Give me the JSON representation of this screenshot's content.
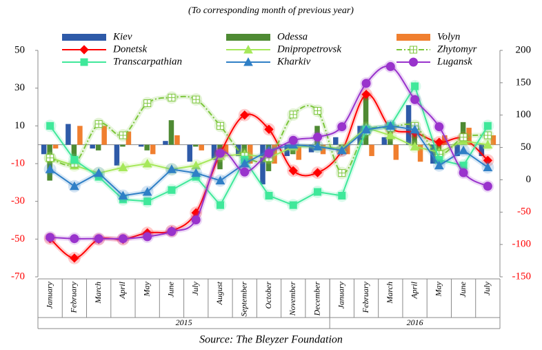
{
  "chart_data": {
    "type": "line",
    "subtitle": "(To corresponding month of previous year)",
    "source": "Source: The Bleyzer Foundation",
    "categories": [
      "January",
      "February",
      "March",
      "April",
      "May",
      "June",
      "July",
      "August",
      "September",
      "October",
      "November",
      "December",
      "January",
      "February",
      "March",
      "April",
      "May",
      "June",
      "July"
    ],
    "years": [
      "2015",
      "2016"
    ],
    "ylim": [
      -70,
      50
    ],
    "yticks": [
      -70,
      -50,
      -30,
      -10,
      10,
      30,
      50
    ],
    "y2lim": [
      -150,
      200
    ],
    "y2ticks": [
      -150,
      -100,
      -50,
      0,
      50,
      100,
      150,
      200
    ],
    "series": [
      {
        "name": "Kiev",
        "type": "bar",
        "color": "#2e5aa8",
        "values": [
          -5,
          11,
          -2,
          -11,
          -1,
          2,
          -9,
          -8,
          -6,
          -21,
          -6,
          -4,
          4,
          10,
          4,
          21,
          -10,
          -6,
          -6
        ]
      },
      {
        "name": "Odessa",
        "type": "bar",
        "color": "#4e8a33",
        "values": [
          -19,
          -7,
          -3,
          -1,
          -3,
          13,
          -1,
          -13,
          -10,
          -14,
          -5,
          10,
          -1,
          26,
          10,
          8,
          -3,
          12,
          -2
        ]
      },
      {
        "name": "Volyn",
        "type": "bar",
        "color": "#f07f2f",
        "values": [
          -2,
          10,
          10,
          7,
          -5,
          5,
          -3,
          -5,
          -10,
          -10,
          -8,
          -5,
          -5,
          -6,
          -8,
          -9,
          5,
          9,
          5
        ]
      },
      {
        "name": "Donetsk",
        "type": "line",
        "axis": "y2",
        "color": "#ff0000",
        "marker": "diamond",
        "smooth": true,
        "values": [
          -91,
          -121,
          -92,
          -92,
          -82,
          -79,
          -51,
          41,
          100,
          78,
          14,
          11,
          45,
          132,
          80,
          73,
          58,
          64,
          30
        ]
      },
      {
        "name": "Dnipropetrovsk",
        "type": "line",
        "color": "#a6e85a",
        "marker": "triangle",
        "values": [
          -7,
          -11,
          -15,
          -12,
          -10,
          -13,
          -11,
          -6,
          -5,
          -7,
          -1,
          -1,
          -2,
          9,
          5,
          -1,
          -4,
          2,
          0
        ]
      },
      {
        "name": "Zhytomyr",
        "type": "line",
        "color": "#7cc63b",
        "marker": "cross",
        "smooth": true,
        "dash": "8 3 2 3",
        "values": [
          -7,
          -10,
          11,
          5,
          22,
          25,
          24,
          10,
          -6,
          -7,
          16,
          18,
          -15,
          7,
          9,
          10,
          -5,
          4,
          5
        ]
      },
      {
        "name": "Transcarpathian",
        "type": "line",
        "color": "#3fe89a",
        "marker": "square",
        "values": [
          10,
          -8,
          -17,
          -29,
          -30,
          -24,
          -17,
          -32,
          -8,
          -27,
          -32,
          -25,
          -27,
          8,
          10,
          31,
          -8,
          -11,
          10
        ]
      },
      {
        "name": "Kharkiv",
        "type": "line",
        "color": "#2f7fc6",
        "marker": "triangle",
        "values": [
          -13,
          -22,
          -15,
          -27,
          -25,
          -13,
          -15,
          -19,
          -10,
          -3,
          0,
          -1,
          -3,
          8,
          10,
          8,
          -11,
          -3,
          -12
        ]
      },
      {
        "name": "Lugansk",
        "type": "line",
        "axis": "y2",
        "color": "#9933cc",
        "marker": "circle",
        "smooth": true,
        "values": [
          -89,
          -91,
          -91,
          -91,
          -88,
          -80,
          -62,
          41,
          12,
          41,
          61,
          66,
          82,
          149,
          175,
          124,
          82,
          11,
          -10
        ]
      }
    ]
  }
}
